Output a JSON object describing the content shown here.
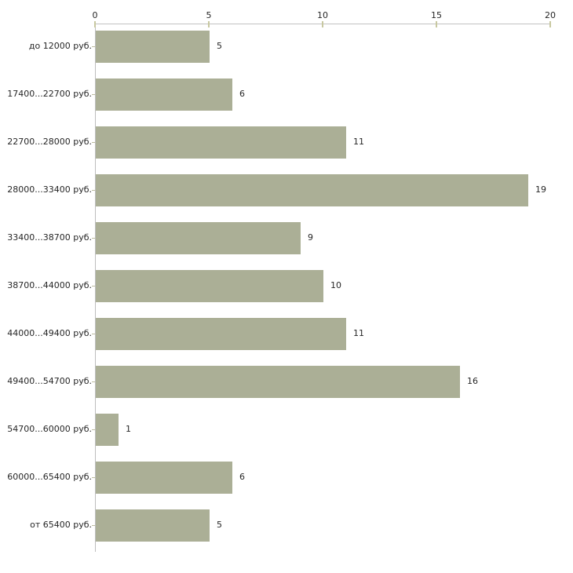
{
  "chart_data": {
    "type": "bar",
    "orientation": "horizontal",
    "title": "",
    "xlabel": "",
    "ylabel": "",
    "axis_position": "top",
    "grid": false,
    "legend": "none",
    "xlim": [
      0,
      20
    ],
    "x_ticks": [
      "0",
      "5",
      "10",
      "15",
      "20"
    ],
    "x_tick_values": [
      0,
      5,
      10,
      15,
      20
    ],
    "categories": [
      "до 12000 руб.",
      "17400...22700 руб.",
      "22700...28000 руб.",
      "28000...33400 руб.",
      "33400...38700 руб.",
      "38700...44000 руб.",
      "44000...49400 руб.",
      "49400...54700 руб.",
      "54700...60000 руб.",
      "60000...65400 руб.",
      "от 65400 руб."
    ],
    "values": [
      5,
      6,
      11,
      19,
      9,
      10,
      11,
      16,
      1,
      6,
      5
    ],
    "value_labels": [
      "5",
      "6",
      "11",
      "19",
      "9",
      "10",
      "11",
      "16",
      "1",
      "6",
      "5"
    ],
    "colors": {
      "bar_fill": "#abaf96",
      "x_axis_line": "#c3c3c3",
      "y_axis_line": "#bdbdbd",
      "x_tick_mark": "#c8c8a0",
      "row_tick_mark": "#bdbda0",
      "text": "#262626",
      "background": "#ffffff"
    }
  }
}
